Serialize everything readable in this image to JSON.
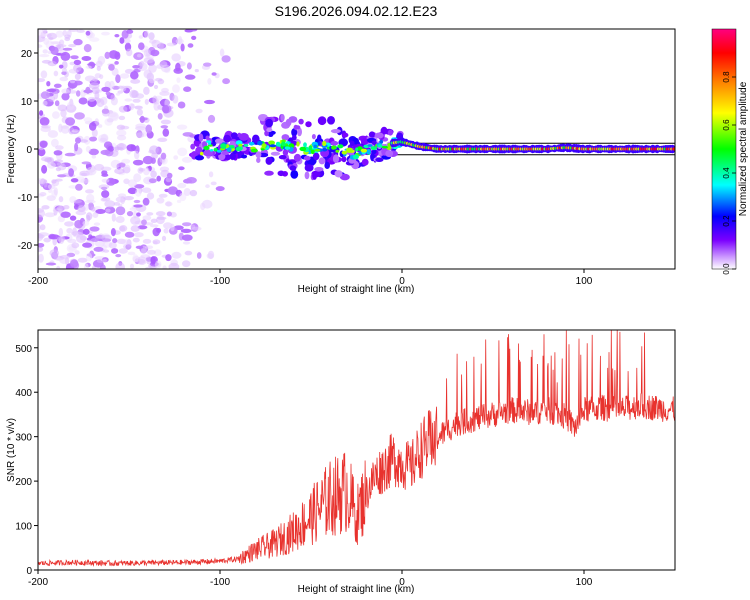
{
  "title": "S196.2026.094.02.12.E23",
  "chart_data": [
    {
      "type": "heatmap",
      "name": "spectrogram",
      "xlabel": "Height of straight line (km)",
      "ylabel": "Frequency (Hz)",
      "xlim": [
        -200,
        150
      ],
      "ylim": [
        -25,
        25
      ],
      "xticks": [
        -200,
        -100,
        0,
        100
      ],
      "xtick_labels": [
        "-200",
        "-100",
        "0",
        "100"
      ],
      "yticks": [
        -20,
        -10,
        0,
        10,
        20
      ],
      "ytick_labels": [
        "-20",
        "-10",
        "0",
        "10",
        "20"
      ],
      "colorbar": {
        "label": "Normalized spectral amplitude",
        "range": [
          0,
          1
        ],
        "ticks": [
          0.0,
          0.2,
          0.4,
          0.6,
          0.8
        ],
        "tick_labels": [
          "0.0",
          "0.2",
          "0.4",
          "0.6",
          "0.8"
        ],
        "colormap": [
          "#ffffff",
          "#cc99ff",
          "#7b00ff",
          "#0000ff",
          "#00ffff",
          "#00ff00",
          "#ffff00",
          "#ff8000",
          "#ff0000",
          "#ff0080"
        ]
      },
      "ridge_line": {
        "x": [
          -110,
          -100,
          -90,
          -80,
          -70,
          -60,
          -50,
          -40,
          -30,
          -20,
          -10,
          0,
          10,
          20,
          40,
          60,
          80,
          90,
          100,
          150
        ],
        "y": [
          1,
          0,
          1,
          0.5,
          1,
          0.5,
          0,
          1,
          -1,
          -0.5,
          1,
          1.5,
          0.5,
          0,
          0,
          0,
          0,
          0.3,
          0,
          0
        ]
      },
      "noise_region_x": [
        -200,
        -110
      ]
    },
    {
      "type": "line",
      "name": "snr",
      "xlabel": "Height of straight line (km)",
      "ylabel": "SNR (10 * v/v)",
      "xlim": [
        -200,
        150
      ],
      "ylim": [
        0,
        540
      ],
      "xticks": [
        -200,
        -100,
        0,
        100
      ],
      "xtick_labels": [
        "-200",
        "-100",
        "0",
        "100"
      ],
      "yticks": [
        0,
        100,
        200,
        300,
        400,
        500
      ],
      "ytick_labels": [
        "0",
        "100",
        "200",
        "300",
        "400",
        "500"
      ],
      "color": "#e8322e",
      "series": [
        {
          "name": "SNR",
          "x": [
            -200,
            -180,
            -160,
            -140,
            -120,
            -100,
            -90,
            -85,
            -80,
            -70,
            -60,
            -50,
            -40,
            -30,
            -25,
            -20,
            -15,
            -10,
            -5,
            0,
            5,
            10,
            15,
            20,
            30,
            40,
            50,
            60,
            70,
            80,
            90,
            95,
            100,
            110,
            120,
            130,
            140,
            150
          ],
          "y": [
            15,
            17,
            15,
            16,
            17,
            20,
            25,
            35,
            45,
            60,
            85,
            120,
            160,
            180,
            120,
            170,
            210,
            230,
            250,
            240,
            230,
            270,
            290,
            300,
            330,
            340,
            350,
            360,
            355,
            360,
            345,
            320,
            360,
            365,
            360,
            370,
            365,
            360
          ]
        }
      ]
    }
  ]
}
